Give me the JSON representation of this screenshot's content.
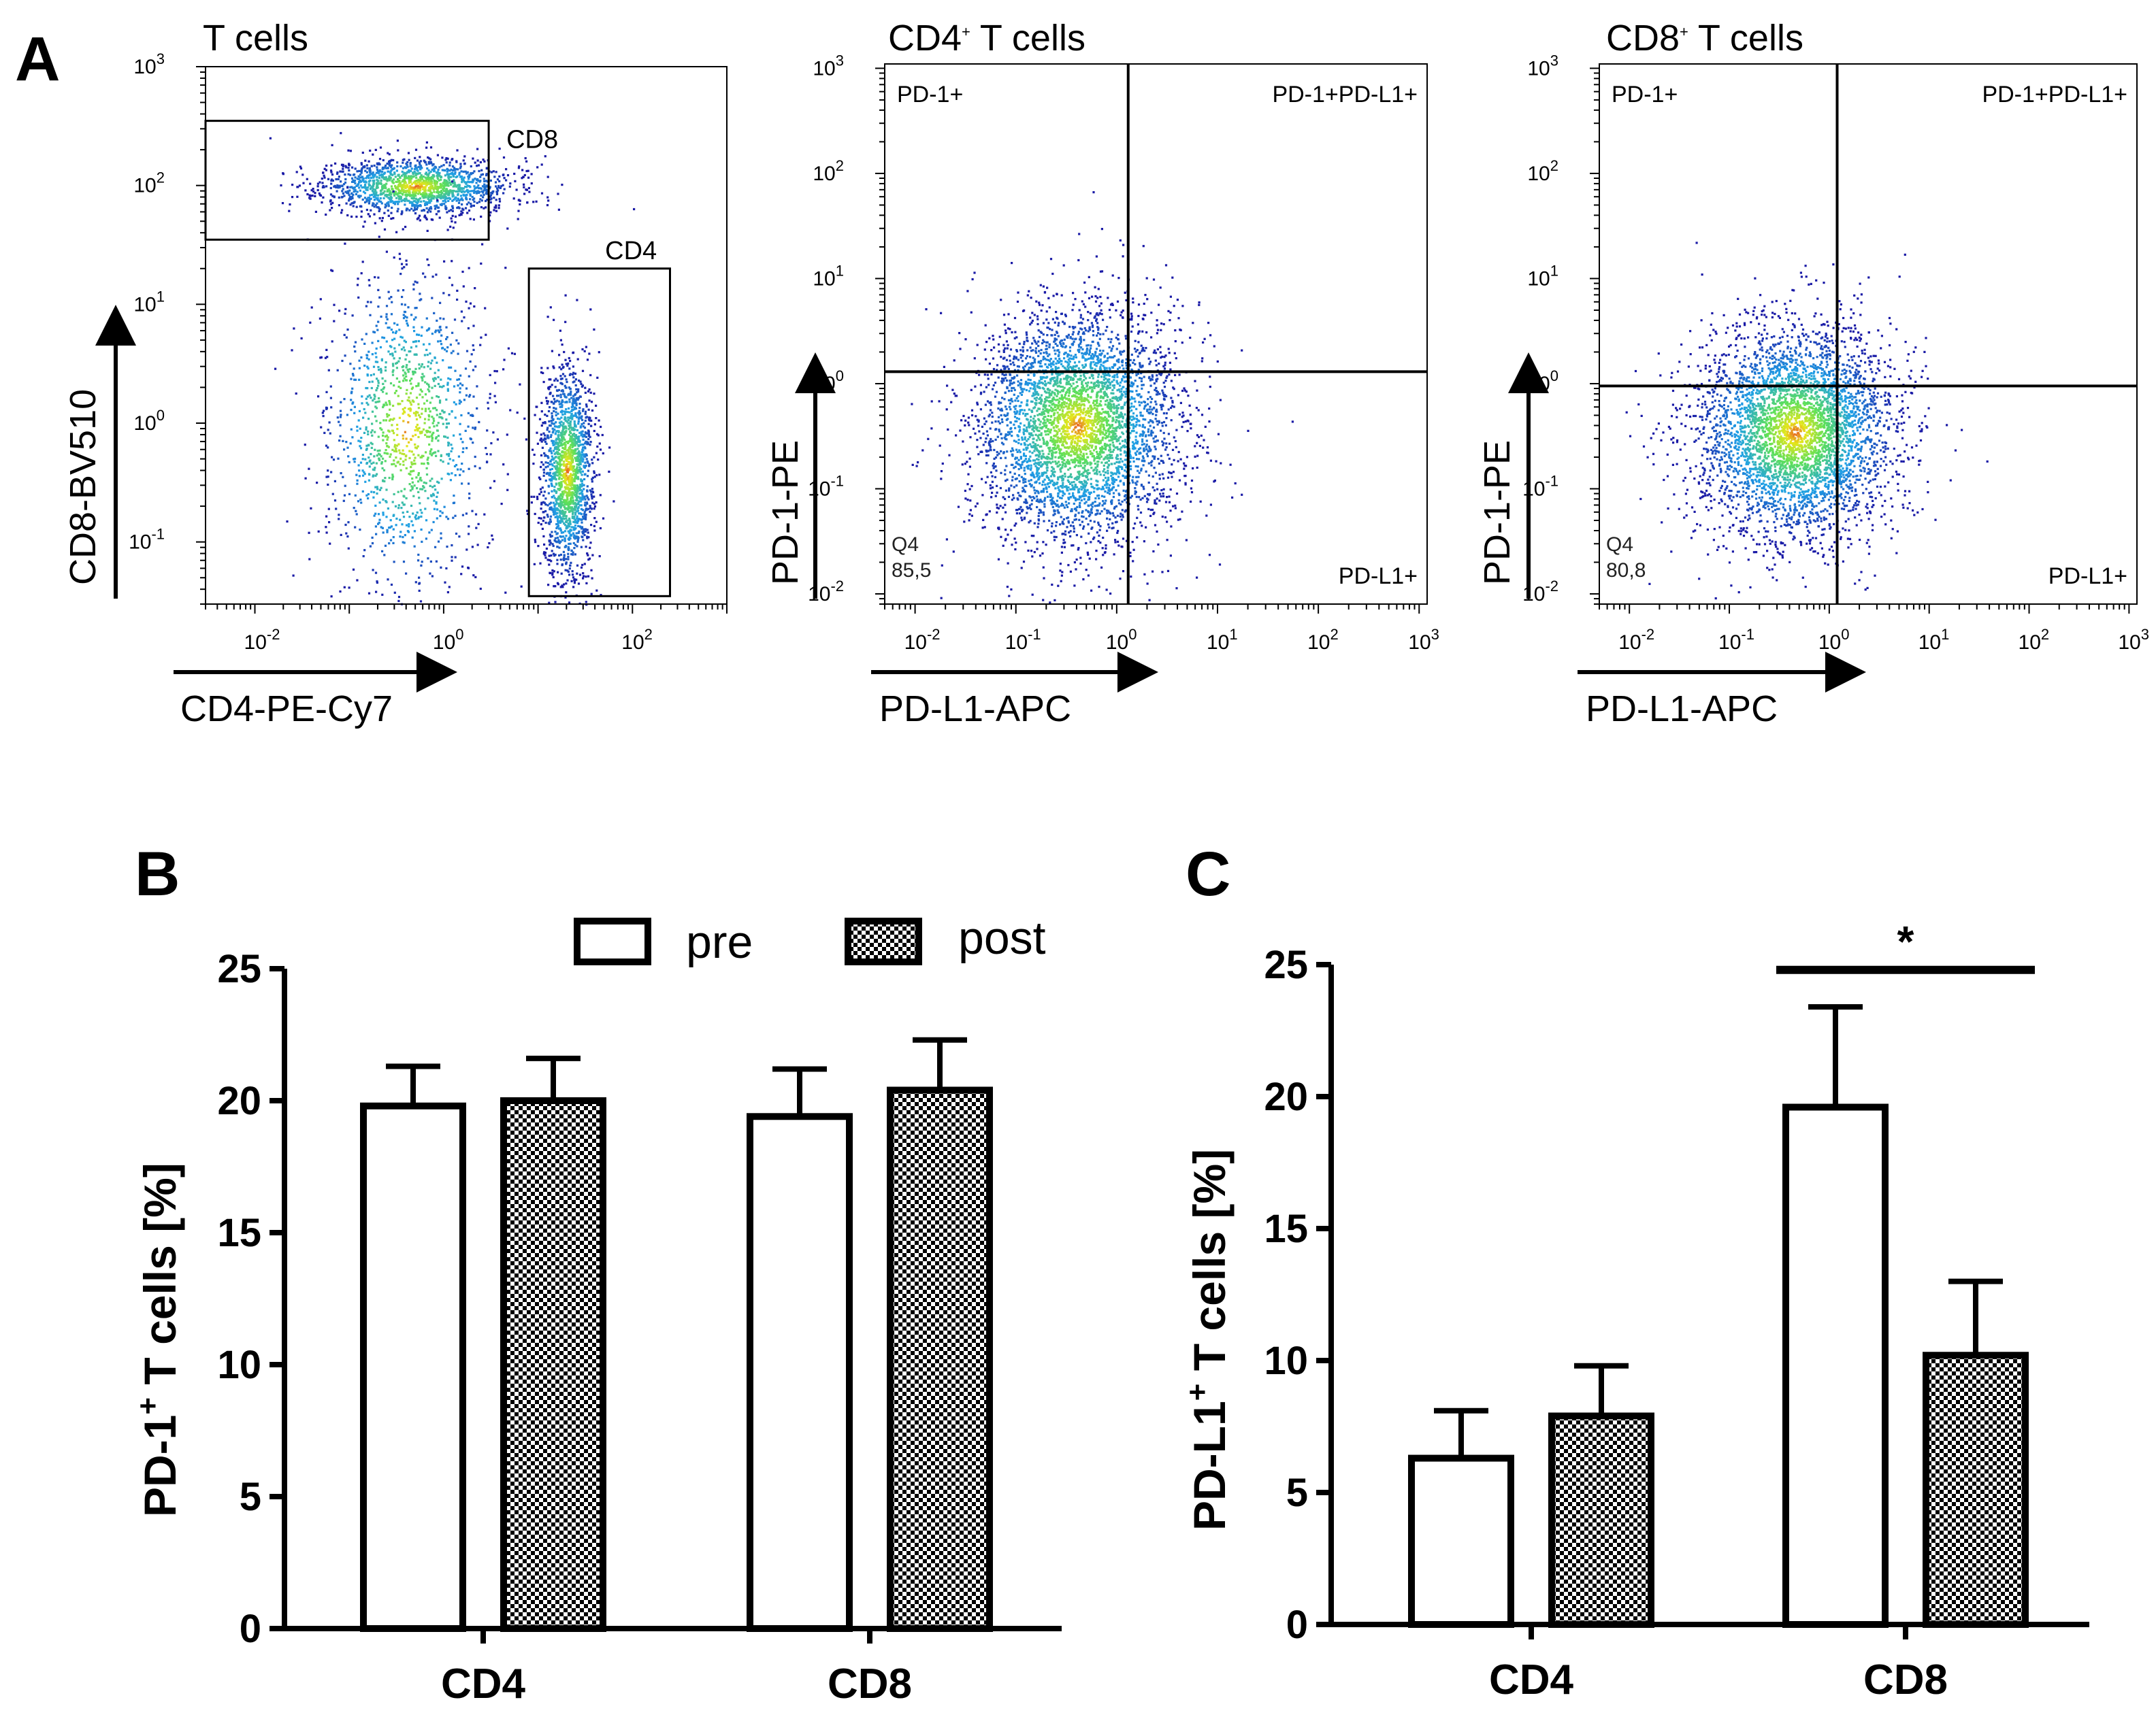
{
  "panel_labels": {
    "A": "A",
    "B": "B",
    "C": "C"
  },
  "colors": {
    "density_low": "#1a1aa6",
    "density_mid": "#1fa0e6",
    "density_high": "#5de05a",
    "density_peak": "#e6e61a",
    "bar_edge": "#000000",
    "bar_pre_fill": "#ffffff",
    "bar_post_fill": "checkerboard"
  },
  "chart_data": [
    {
      "type": "scatter",
      "title": "T cells",
      "xlabel": "CD4-PE-Cy7",
      "ylabel": "CD8-BV510",
      "x_scale": "log",
      "y_scale": "log",
      "xlim": [
        0.003,
        1000
      ],
      "ylim": [
        0.03,
        1000
      ],
      "x_ticks": [
        {
          "base": "10",
          "exp": "-2",
          "value": 0.01
        },
        {
          "base": "10",
          "exp": "0",
          "value": 1
        },
        {
          "base": "10",
          "exp": "2",
          "value": 100
        }
      ],
      "y_ticks": [
        {
          "base": "10",
          "exp": "-1",
          "value": 0.1
        },
        {
          "base": "10",
          "exp": "0",
          "value": 1
        },
        {
          "base": "10",
          "exp": "1",
          "value": 10
        },
        {
          "base": "10",
          "exp": "2",
          "value": 100
        },
        {
          "base": "10",
          "exp": "3",
          "value": 1000
        }
      ],
      "gates": [
        {
          "label": "CD8",
          "x": [
            0.003,
            3
          ],
          "y": [
            35,
            350
          ]
        },
        {
          "label": "CD4",
          "x": [
            8,
            250
          ],
          "y": [
            0.035,
            20
          ]
        }
      ],
      "populations": [
        {
          "cx": 0.5,
          "cy": 100,
          "sx": 0.5,
          "sy": 0.12,
          "n": 1600
        },
        {
          "cx": 0.4,
          "cy": 0.9,
          "sx": 0.45,
          "sy": 0.7,
          "n": 1300
        },
        {
          "cx": 20,
          "cy": 0.4,
          "sx": 0.14,
          "sy": 0.45,
          "n": 1700
        }
      ]
    },
    {
      "type": "scatter",
      "title": "CD4⁺ T cells",
      "title_base": "CD4",
      "title_sup": "+",
      "title_rest": " T cells",
      "xlabel": "PD-L1-APC",
      "ylabel": "PD-1-PE",
      "x_scale": "log",
      "y_scale": "log",
      "xlim": [
        0.005,
        1200
      ],
      "ylim": [
        0.008,
        1100
      ],
      "x_ticks": [
        {
          "base": "10",
          "exp": "-2",
          "value": 0.01
        },
        {
          "base": "10",
          "exp": "-1",
          "value": 0.1
        },
        {
          "base": "10",
          "exp": "0",
          "value": 1
        },
        {
          "base": "10",
          "exp": "1",
          "value": 10
        },
        {
          "base": "10",
          "exp": "2",
          "value": 100
        },
        {
          "base": "10",
          "exp": "3",
          "value": 1000
        }
      ],
      "y_ticks": [
        {
          "base": "10",
          "exp": "-2",
          "value": 0.01
        },
        {
          "base": "10",
          "exp": "-1",
          "value": 0.1
        },
        {
          "base": "10",
          "exp": "0",
          "value": 1
        },
        {
          "base": "10",
          "exp": "1",
          "value": 10
        },
        {
          "base": "10",
          "exp": "2",
          "value": 100
        },
        {
          "base": "10",
          "exp": "3",
          "value": 1000
        }
      ],
      "quadrant_x": 1.3,
      "quadrant_y": 1.3,
      "quadrant_labels": {
        "top_left": "PD-1+",
        "top_right": "PD-1+PD-L1+",
        "bottom_right": "PD-L1+"
      },
      "quadrant_stat": {
        "name": "Q4",
        "value": "85,5"
      },
      "populations": [
        {
          "cx": 0.4,
          "cy": 0.4,
          "sx": 0.5,
          "sy": 0.55,
          "n": 4200
        }
      ]
    },
    {
      "type": "scatter",
      "title": "CD8⁺ T cells",
      "title_base": "CD8",
      "title_sup": "+",
      "title_rest": " T cells",
      "xlabel": "PD-L1-APC",
      "ylabel": "PD-1-PE",
      "x_scale": "log",
      "y_scale": "log",
      "xlim": [
        0.005,
        1200
      ],
      "ylim": [
        0.008,
        1100
      ],
      "x_ticks": [
        {
          "base": "10",
          "exp": "-2",
          "value": 0.01
        },
        {
          "base": "10",
          "exp": "-1",
          "value": 0.1
        },
        {
          "base": "10",
          "exp": "0",
          "value": 1
        },
        {
          "base": "10",
          "exp": "1",
          "value": 10
        },
        {
          "base": "10",
          "exp": "2",
          "value": 100
        },
        {
          "base": "10",
          "exp": "3",
          "value": 1000
        }
      ],
      "y_ticks": [
        {
          "base": "10",
          "exp": "-2",
          "value": 0.01
        },
        {
          "base": "10",
          "exp": "-1",
          "value": 0.1
        },
        {
          "base": "10",
          "exp": "0",
          "value": 1
        },
        {
          "base": "10",
          "exp": "1",
          "value": 10
        },
        {
          "base": "10",
          "exp": "2",
          "value": 100
        },
        {
          "base": "10",
          "exp": "3",
          "value": 1000
        }
      ],
      "quadrant_x": 1.2,
      "quadrant_y": 0.95,
      "quadrant_labels": {
        "top_left": "PD-1+",
        "top_right": "PD-1+PD-L1+",
        "bottom_right": "PD-L1+"
      },
      "quadrant_stat": {
        "name": "Q4",
        "value": "80,8"
      },
      "populations": [
        {
          "cx": 0.45,
          "cy": 0.35,
          "sx": 0.5,
          "sy": 0.5,
          "n": 4200
        }
      ]
    },
    {
      "type": "bar",
      "ylabel_main": "PD-1",
      "ylabel_sup": "+",
      "ylabel_rest": " T cells [%]",
      "categories": [
        "CD4",
        "CD8"
      ],
      "ylim": [
        0,
        25
      ],
      "y_ticks": [
        0,
        5,
        10,
        15,
        20,
        25
      ],
      "legend": {
        "pre": "pre",
        "post": "post",
        "position": "top"
      },
      "series": [
        {
          "name": "pre",
          "values": [
            19.8,
            19.4
          ],
          "errors": [
            1.5,
            1.8
          ]
        },
        {
          "name": "post",
          "values": [
            20.0,
            20.4
          ],
          "errors": [
            1.6,
            1.9
          ]
        }
      ]
    },
    {
      "type": "bar",
      "ylabel_main": "PD-L1",
      "ylabel_sup": "+",
      "ylabel_rest": " T cells [%]",
      "categories": [
        "CD4",
        "CD8"
      ],
      "ylim": [
        0,
        25
      ],
      "y_ticks": [
        0,
        5,
        10,
        15,
        20,
        25
      ],
      "series": [
        {
          "name": "pre",
          "values": [
            6.3,
            19.6
          ],
          "errors": [
            1.8,
            3.8
          ]
        },
        {
          "name": "post",
          "values": [
            7.9,
            10.2
          ],
          "errors": [
            1.9,
            2.8
          ]
        }
      ],
      "significance": {
        "label": "*",
        "y": 24.8
      }
    }
  ]
}
